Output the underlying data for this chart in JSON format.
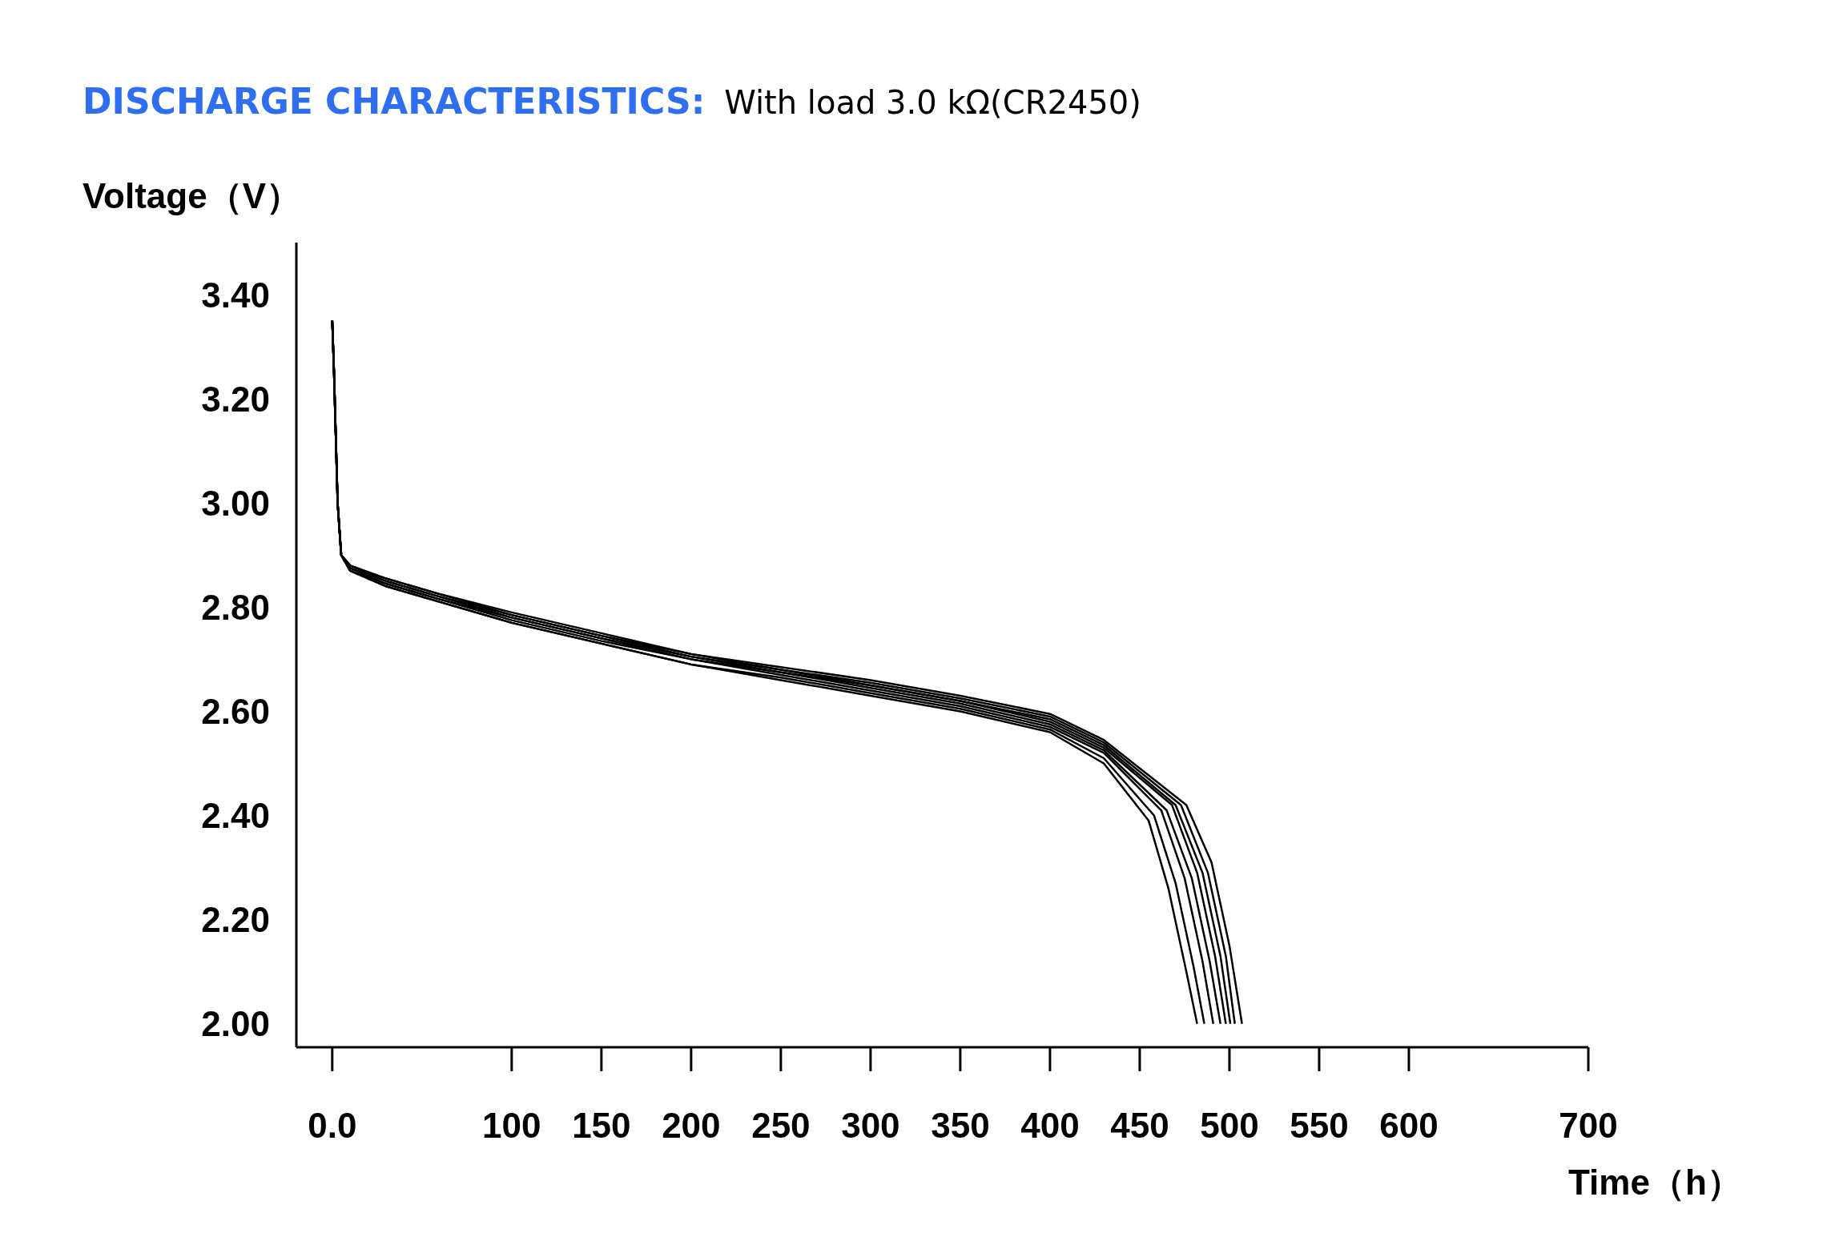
{
  "chart_data": {
    "type": "line",
    "title": "DISCHARGE CHARACTERISTICS:",
    "subtitle": "With load 3.0 kΩ(CR2450)",
    "xlabel": "Time（h）",
    "ylabel": "Voltage（V）",
    "xlim": [
      -20,
      700
    ],
    "xticks": [
      {
        "value": 0,
        "label": "0.0"
      },
      100,
      150,
      200,
      250,
      300,
      350,
      400,
      450,
      500,
      550,
      600,
      700
    ],
    "ylim": [
      1.955,
      3.5
    ],
    "yticks": [
      {
        "value": 2,
        "label": "2.00"
      },
      {
        "value": 2.2,
        "label": "2.20"
      },
      {
        "value": 2.4,
        "label": "2.40"
      },
      {
        "value": 2.6,
        "label": "2.60"
      },
      {
        "value": 2.8,
        "label": "2.80"
      },
      {
        "value": 3,
        "label": "3.00"
      },
      {
        "value": 3.2,
        "label": "3.20"
      },
      {
        "value": 3.4,
        "label": "3.40"
      }
    ],
    "grid": false,
    "legend": false,
    "marker": "none",
    "line_style": "solid",
    "series": [
      {
        "color": "#000000",
        "x": [
          0,
          0.5,
          1,
          3,
          5,
          10,
          30,
          60,
          100,
          150,
          200,
          250,
          300,
          350,
          400,
          430,
          455,
          466,
          476,
          482
        ],
        "values": [
          3.35,
          3.3,
          3.25,
          3.0,
          2.9,
          2.87,
          2.84,
          2.81,
          2.77,
          2.73,
          2.69,
          2.66,
          2.63,
          2.6,
          2.56,
          2.5,
          2.39,
          2.26,
          2.1,
          2.0
        ]
      },
      {
        "color": "#000000",
        "x": [
          0,
          0.5,
          1,
          3,
          5,
          10,
          30,
          60,
          100,
          150,
          200,
          250,
          300,
          350,
          400,
          430,
          458,
          470,
          480,
          486
        ],
        "values": [
          3.35,
          3.3,
          3.25,
          3.0,
          2.9,
          2.87,
          2.84,
          2.81,
          2.77,
          2.73,
          2.69,
          2.665,
          2.635,
          2.605,
          2.565,
          2.51,
          2.4,
          2.27,
          2.11,
          2.0
        ]
      },
      {
        "color": "#000000",
        "x": [
          0,
          0.5,
          1,
          3,
          5,
          10,
          30,
          60,
          100,
          150,
          200,
          250,
          300,
          350,
          400,
          430,
          462,
          475,
          485,
          491
        ],
        "values": [
          3.35,
          3.3,
          3.25,
          3.0,
          2.9,
          2.87,
          2.845,
          2.815,
          2.775,
          2.735,
          2.7,
          2.67,
          2.64,
          2.61,
          2.57,
          2.52,
          2.41,
          2.28,
          2.12,
          2.0
        ]
      },
      {
        "color": "#000000",
        "x": [
          0,
          0.5,
          1,
          3,
          5,
          10,
          30,
          60,
          100,
          150,
          200,
          250,
          300,
          350,
          400,
          430,
          465,
          479,
          489,
          495
        ],
        "values": [
          3.35,
          3.3,
          3.25,
          3.0,
          2.9,
          2.875,
          2.845,
          2.815,
          2.78,
          2.74,
          2.7,
          2.675,
          2.645,
          2.615,
          2.575,
          2.525,
          2.41,
          2.28,
          2.12,
          2.0
        ]
      },
      {
        "color": "#000000",
        "x": [
          0,
          0.5,
          1,
          3,
          5,
          10,
          30,
          60,
          100,
          150,
          200,
          250,
          300,
          350,
          400,
          430,
          468,
          482,
          492,
          498
        ],
        "values": [
          3.35,
          3.3,
          3.25,
          3.0,
          2.9,
          2.875,
          2.85,
          2.82,
          2.78,
          2.74,
          2.705,
          2.675,
          2.65,
          2.62,
          2.58,
          2.53,
          2.42,
          2.29,
          2.13,
          2.0
        ]
      },
      {
        "color": "#000000",
        "x": [
          0,
          0.5,
          1,
          3,
          5,
          10,
          30,
          60,
          100,
          150,
          200,
          250,
          300,
          350,
          400,
          430,
          470,
          485,
          495,
          500.5
        ],
        "values": [
          3.35,
          3.3,
          3.25,
          3.0,
          2.9,
          2.88,
          2.85,
          2.82,
          2.785,
          2.745,
          2.705,
          2.68,
          2.65,
          2.62,
          2.585,
          2.535,
          2.42,
          2.29,
          2.13,
          2.0
        ]
      },
      {
        "color": "#000000",
        "x": [
          0,
          0.5,
          1,
          3,
          5,
          10,
          30,
          60,
          100,
          150,
          200,
          250,
          300,
          350,
          400,
          430,
          473,
          488,
          498,
          503
        ],
        "values": [
          3.35,
          3.3,
          3.25,
          3.0,
          2.9,
          2.88,
          2.855,
          2.825,
          2.785,
          2.745,
          2.71,
          2.68,
          2.655,
          2.625,
          2.59,
          2.54,
          2.42,
          2.29,
          2.13,
          2.0
        ]
      },
      {
        "color": "#000000",
        "x": [
          0,
          0.5,
          1,
          3,
          5,
          10,
          30,
          60,
          100,
          150,
          200,
          250,
          300,
          350,
          400,
          430,
          476,
          490,
          500,
          507
        ],
        "values": [
          3.35,
          3.3,
          3.25,
          3.0,
          2.9,
          2.88,
          2.855,
          2.825,
          2.79,
          2.75,
          2.71,
          2.685,
          2.66,
          2.63,
          2.595,
          2.545,
          2.42,
          2.31,
          2.15,
          2.0
        ]
      }
    ]
  }
}
